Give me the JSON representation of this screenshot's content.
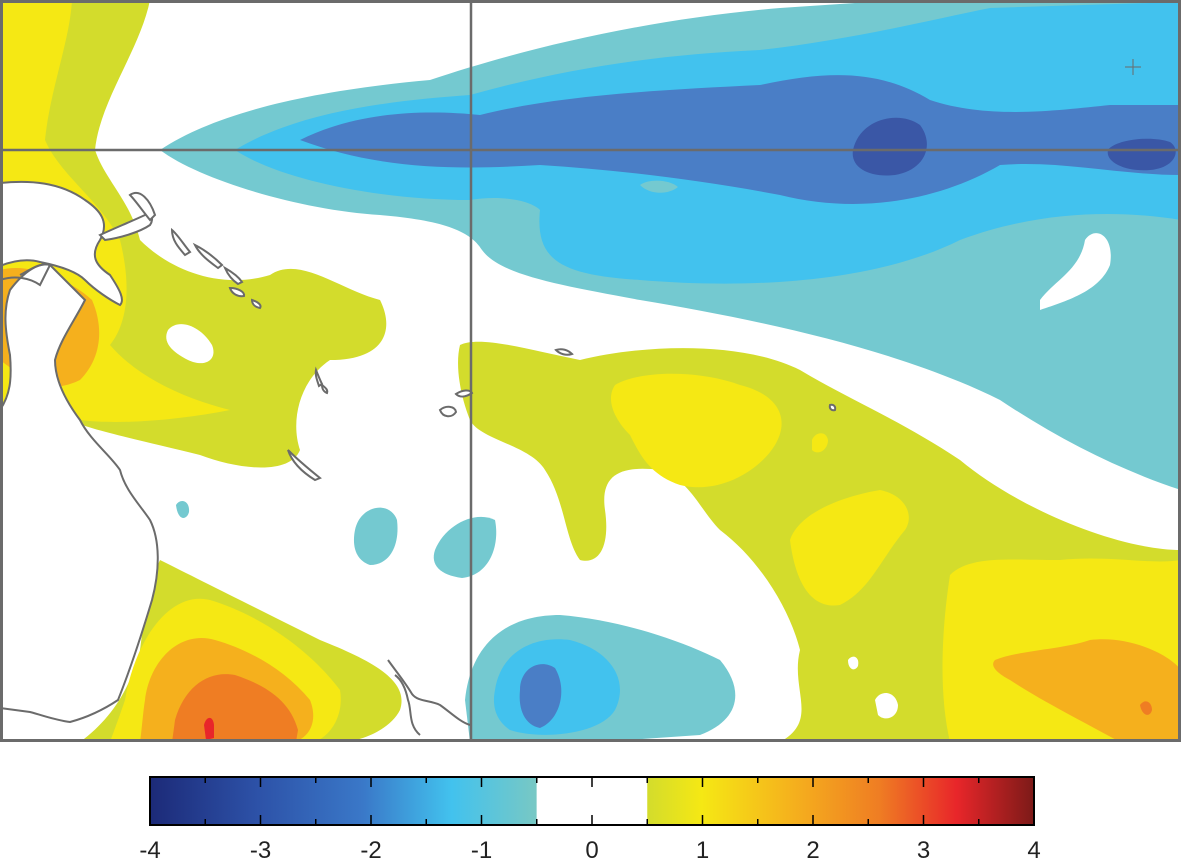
{
  "map": {
    "colors": {
      "land_outline": "#6b6b6b",
      "frame": "#6b6b6b",
      "grid_line": "#6b6b6b",
      "neg3": "#4a7ec6",
      "neg4": "#3a57a6",
      "neg2": "#42c2ee",
      "neg1": "#74c9d0",
      "pos1": "#d3dc2c",
      "pos2": "#f5e814",
      "pos3": "#f5b01d",
      "pos4": "#ef7d23",
      "pos5": "#e8262a"
    }
  },
  "colorbar": {
    "min": -4,
    "max": 4,
    "white_band": [
      -0.5,
      0.5
    ],
    "tick_labels": [
      "-4",
      "-3",
      "-2",
      "-1",
      "0",
      "1",
      "2",
      "3",
      "4"
    ],
    "stops": [
      "#1c2a78",
      "#2d52a8",
      "#3a78c8",
      "#42c2ee",
      "#78c8c4",
      "#d3dc2c",
      "#f5e814",
      "#f5b01d",
      "#ef7d23",
      "#e8262a",
      "#7c1a18"
    ]
  }
}
